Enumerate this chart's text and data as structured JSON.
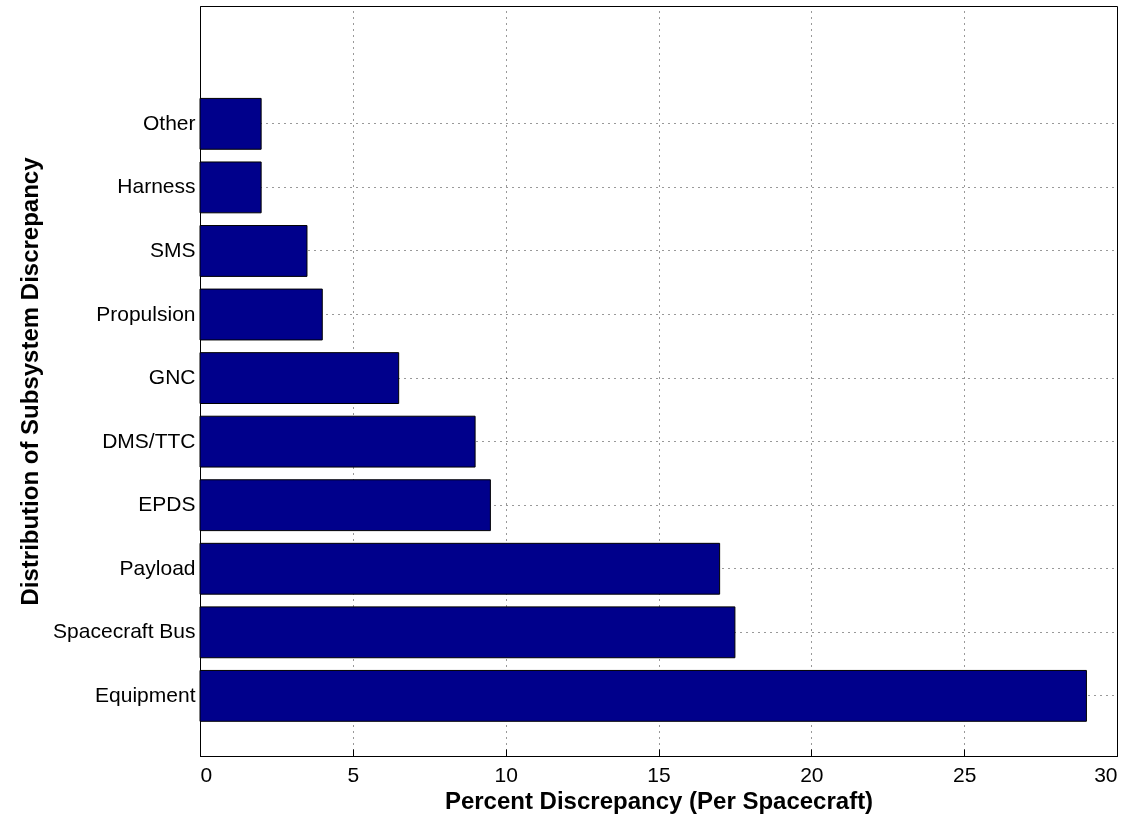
{
  "chart_data": {
    "type": "bar",
    "orientation": "horizontal",
    "categories": [
      "Other",
      "Harness",
      "SMS",
      "Propulsion",
      "GNC",
      "DMS/TTC",
      "EPDS",
      "Payload",
      "Spacecraft Bus",
      "Equipment"
    ],
    "values": [
      2,
      2,
      3.5,
      4,
      6.5,
      9,
      9.5,
      17,
      17.5,
      29
    ],
    "color": "#00008b",
    "xlim": [
      0,
      30
    ],
    "xticks": [
      0,
      5,
      10,
      15,
      20,
      25,
      30
    ],
    "xlabel": "Percent Discrepancy (Per Spacecraft)",
    "ylabel": "Distribution of Subsystem Discrepancy",
    "grid": true
  }
}
